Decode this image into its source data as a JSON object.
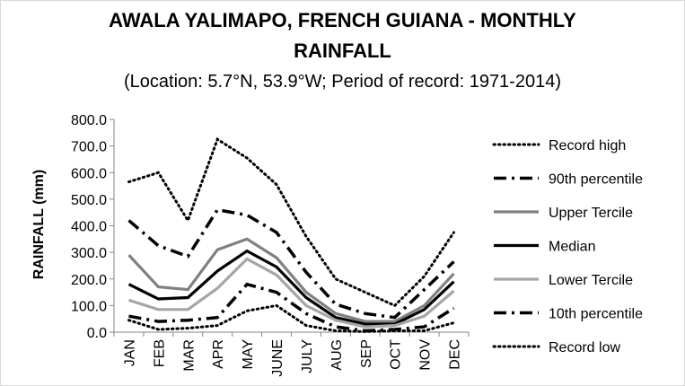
{
  "chart_data": {
    "type": "line",
    "title_line1": "AWALA YALIMAPO, FRENCH GUIANA - MONTHLY",
    "title_line2": "RAINFALL",
    "subtitle": "(Location: 5.7°N, 53.9°W; Period of record: 1971-2014)",
    "xlabel": "",
    "ylabel": "RAINFALL (mm)",
    "ylim": [
      0,
      800
    ],
    "yticks": [
      "0.0",
      "100.0",
      "200.0",
      "300.0",
      "400.0",
      "500.0",
      "600.0",
      "700.0",
      "800.0"
    ],
    "categories": [
      "JAN",
      "FEB",
      "MAR",
      "APR",
      "MAY",
      "JUNE",
      "JULY",
      "AUG",
      "SEP",
      "OCT",
      "NOV",
      "DEC"
    ],
    "grid": false,
    "legend_position": "right",
    "series": [
      {
        "name": "Record high",
        "style": "dotted",
        "color": "#000000",
        "values": [
          565,
          600,
          420,
          725,
          655,
          555,
          360,
          200,
          150,
          100,
          210,
          375
        ]
      },
      {
        "name": "90th percentile",
        "style": "dashdot",
        "color": "#000000",
        "values": [
          420,
          325,
          285,
          460,
          440,
          375,
          225,
          105,
          70,
          55,
          160,
          265
        ]
      },
      {
        "name": "Upper Tercile",
        "style": "solid",
        "color": "#808080",
        "values": [
          290,
          170,
          160,
          310,
          350,
          280,
          150,
          70,
          40,
          40,
          100,
          220
        ]
      },
      {
        "name": "Median",
        "style": "solid",
        "color": "#000000",
        "values": [
          180,
          125,
          130,
          230,
          305,
          245,
          130,
          55,
          30,
          30,
          85,
          190
        ]
      },
      {
        "name": "Lower Tercile",
        "style": "solid",
        "color": "#a6a6a6",
        "values": [
          120,
          85,
          85,
          165,
          275,
          215,
          100,
          45,
          20,
          25,
          60,
          155
        ]
      },
      {
        "name": "10th percentile",
        "style": "dashdot",
        "color": "#000000",
        "values": [
          60,
          40,
          45,
          55,
          180,
          150,
          70,
          20,
          5,
          10,
          20,
          90
        ]
      },
      {
        "name": "Record low",
        "style": "dotted",
        "color": "#000000",
        "values": [
          45,
          10,
          15,
          25,
          80,
          100,
          25,
          5,
          2,
          5,
          5,
          35
        ]
      }
    ]
  }
}
